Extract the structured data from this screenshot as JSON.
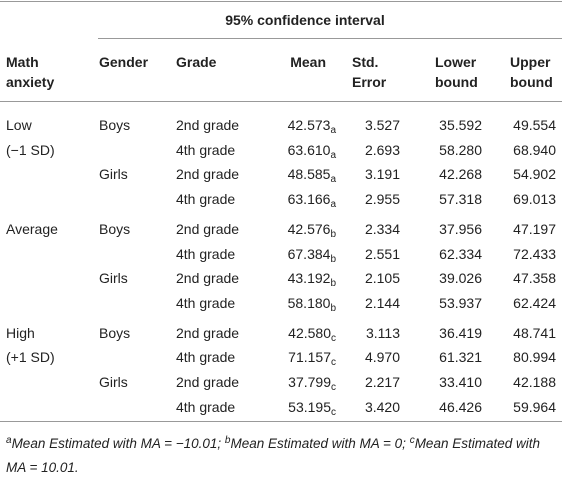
{
  "table": {
    "spanner": "95% confidence interval",
    "headers": {
      "anxiety": [
        "Math",
        "anxiety"
      ],
      "gender": "Gender",
      "grade": "Grade",
      "mean": "Mean",
      "se": [
        "Std.",
        "Error"
      ],
      "lower": [
        "Lower",
        "bound"
      ],
      "upper": [
        "Upper",
        "bound"
      ]
    },
    "groups": [
      {
        "anxiety": [
          "Low",
          "(−1 SD)"
        ],
        "genders": [
          {
            "gender": "Boys",
            "rows": [
              {
                "grade": "2nd grade",
                "mean": "42.573",
                "sub": "a",
                "se": "3.527",
                "lower": "35.592",
                "upper": "49.554"
              },
              {
                "grade": "4th grade",
                "mean": "63.610",
                "sub": "a",
                "se": "2.693",
                "lower": "58.280",
                "upper": "68.940"
              }
            ]
          },
          {
            "gender": "Girls",
            "rows": [
              {
                "grade": "2nd grade",
                "mean": "48.585",
                "sub": "a",
                "se": "3.191",
                "lower": "42.268",
                "upper": "54.902"
              },
              {
                "grade": "4th grade",
                "mean": "63.166",
                "sub": "a",
                "se": "2.955",
                "lower": "57.318",
                "upper": "69.013"
              }
            ]
          }
        ]
      },
      {
        "anxiety": [
          "Average"
        ],
        "genders": [
          {
            "gender": "Boys",
            "rows": [
              {
                "grade": "2nd grade",
                "mean": "42.576",
                "sub": "b",
                "se": "2.334",
                "lower": "37.956",
                "upper": "47.197"
              },
              {
                "grade": "4th grade",
                "mean": "67.384",
                "sub": "b",
                "se": "2.551",
                "lower": "62.334",
                "upper": "72.433"
              }
            ]
          },
          {
            "gender": "Girls",
            "rows": [
              {
                "grade": "2nd grade",
                "mean": "43.192",
                "sub": "b",
                "se": "2.105",
                "lower": "39.026",
                "upper": "47.358"
              },
              {
                "grade": "4th grade",
                "mean": "58.180",
                "sub": "b",
                "se": "2.144",
                "lower": "53.937",
                "upper": "62.424"
              }
            ]
          }
        ]
      },
      {
        "anxiety": [
          "High",
          "(+1 SD)"
        ],
        "genders": [
          {
            "gender": "Boys",
            "rows": [
              {
                "grade": "2nd grade",
                "mean": "42.580",
                "sub": "c",
                "se": "3.113",
                "lower": "36.419",
                "upper": "48.741"
              },
              {
                "grade": "4th grade",
                "mean": "71.157",
                "sub": "c",
                "se": "4.970",
                "lower": "61.321",
                "upper": "80.994"
              }
            ]
          },
          {
            "gender": "Girls",
            "rows": [
              {
                "grade": "2nd grade",
                "mean": "37.799",
                "sub": "c",
                "se": "2.217",
                "lower": "33.410",
                "upper": "42.188"
              },
              {
                "grade": "4th grade",
                "mean": "53.195",
                "sub": "c",
                "se": "3.420",
                "lower": "46.426",
                "upper": "59.964"
              }
            ]
          }
        ]
      }
    ],
    "notes": [
      {
        "mark": "a",
        "text": "Mean Estimated with MA = −10.01; "
      },
      {
        "mark": "b",
        "text": "Mean Estimated with MA = 0; "
      },
      {
        "mark": "c",
        "text": "Mean Estimated with MA = 10.01."
      }
    ]
  }
}
